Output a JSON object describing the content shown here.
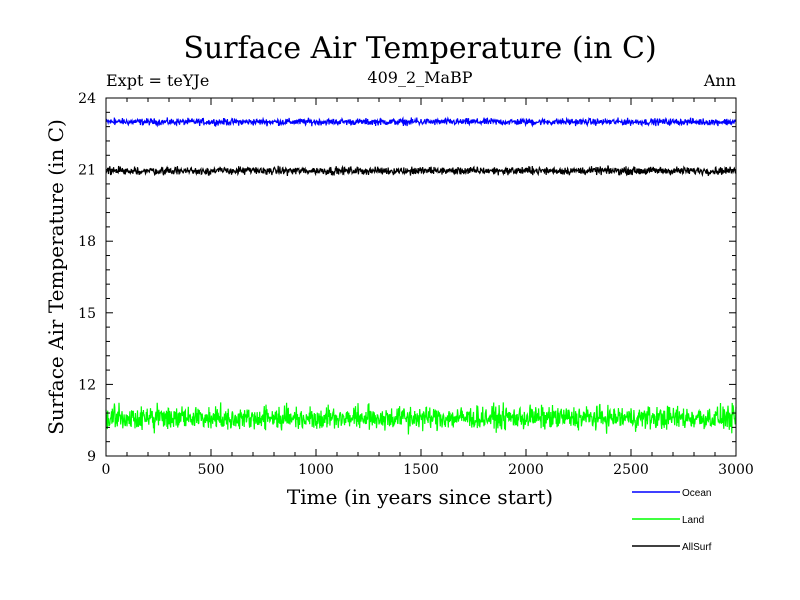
{
  "chart_data": {
    "type": "line",
    "title": "Surface Air Temperature (in C)",
    "subtitle_left": "Expt = teYJe",
    "subtitle_center": "409_2_MaBP",
    "subtitle_right": "Ann",
    "xlabel": "Time (in years since start)",
    "ylabel": "Surface Air Temperature (in C)",
    "xlim": [
      0,
      3000
    ],
    "ylim": [
      9,
      24
    ],
    "xticks": [
      0,
      500,
      1000,
      1500,
      2000,
      2500,
      3000
    ],
    "yticks": [
      9,
      12,
      15,
      18,
      21,
      24
    ],
    "series": [
      {
        "name": "Ocean",
        "color": "#0000ff",
        "mean": 23.0,
        "noise": 0.07,
        "extremes": [
          [
            40,
            23.18
          ],
          [
            1480,
            23.18
          ],
          [
            2030,
            22.85
          ]
        ]
      },
      {
        "name": "Land",
        "color": "#00ff00",
        "mean": 10.6,
        "noise": 0.24,
        "extremes": [
          [
            40,
            11.2
          ],
          [
            230,
            9.95
          ],
          [
            1440,
            9.9
          ],
          [
            2020,
            11.15
          ],
          [
            2980,
            9.95
          ]
        ]
      },
      {
        "name": "AllSurf",
        "color": "#000000",
        "mean": 20.95,
        "noise": 0.08,
        "extremes": [
          [
            60,
            21.15
          ],
          [
            2030,
            21.15
          ],
          [
            1450,
            20.75
          ]
        ]
      }
    ],
    "legend_position": "bottom-right"
  }
}
